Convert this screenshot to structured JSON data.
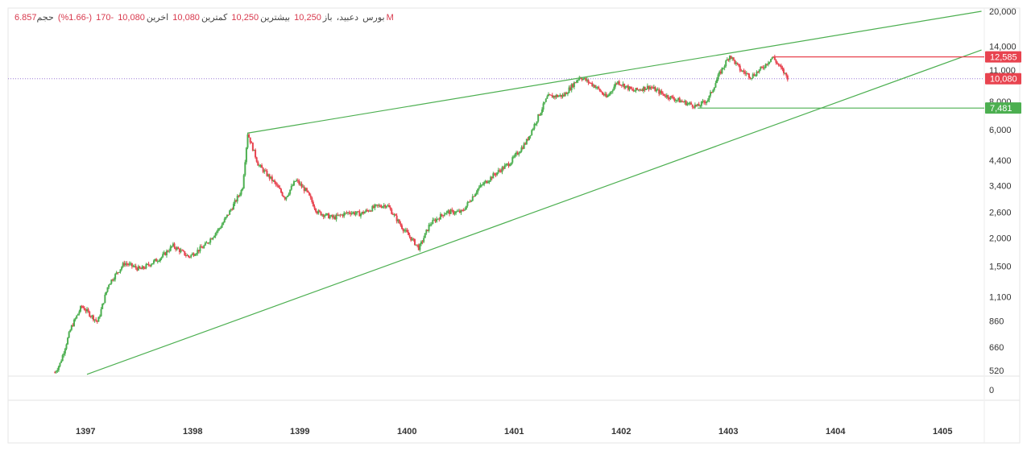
{
  "header": {
    "market": "بورس",
    "symbol": "دعبید،",
    "open_label": "باز",
    "open_value": "10,250",
    "high_label": "بیشترین",
    "high_value": "10,250",
    "low_label": "کمترین",
    "low_value": "10,080",
    "close_label": "اخرین",
    "close_value": "10,080",
    "change_value": "-170",
    "change_pct": "(-1.66%)",
    "volume_label": "حجم",
    "volume_value": "6.857M"
  },
  "chart_data": {
    "type": "candlestick",
    "scale": "log",
    "x_ticks": [
      "1397",
      "1398",
      "1399",
      "1400",
      "1401",
      "1402",
      "1403",
      "1404",
      "1405"
    ],
    "y_ticks": [
      "20,000",
      "14,000",
      "11,000",
      "8,000",
      "6,000",
      "4,400",
      "3,400",
      "2,600",
      "2,000",
      "1,500",
      "1,100",
      "860",
      "660",
      "520",
      "0"
    ],
    "y_tick_values": [
      20000,
      14000,
      11000,
      8000,
      6000,
      4400,
      3400,
      2600,
      2000,
      1500,
      1100,
      860,
      660,
      520
    ],
    "price_tags": [
      {
        "label": "12,585",
        "value": 12585,
        "color": "#e8434f"
      },
      {
        "label": "10,080",
        "value": 10080,
        "color": "#e8434f"
      },
      {
        "label": "7,481",
        "value": 7481,
        "color": "#4caf50"
      }
    ],
    "last_price": 10080,
    "price_path": [
      [
        1396.7,
        510
      ],
      [
        1396.75,
        560
      ],
      [
        1396.85,
        800
      ],
      [
        1396.95,
        1000
      ],
      [
        1397.1,
        850
      ],
      [
        1397.2,
        1250
      ],
      [
        1397.35,
        1550
      ],
      [
        1397.5,
        1450
      ],
      [
        1397.7,
        1650
      ],
      [
        1397.8,
        1850
      ],
      [
        1397.95,
        1650
      ],
      [
        1398.1,
        1850
      ],
      [
        1398.25,
        2250
      ],
      [
        1398.35,
        2700
      ],
      [
        1398.45,
        3300
      ],
      [
        1398.5,
        5800
      ],
      [
        1398.6,
        4200
      ],
      [
        1398.75,
        3500
      ],
      [
        1398.85,
        3000
      ],
      [
        1398.95,
        3600
      ],
      [
        1399.05,
        3200
      ],
      [
        1399.15,
        2600
      ],
      [
        1399.3,
        2450
      ],
      [
        1399.45,
        2600
      ],
      [
        1399.55,
        2550
      ],
      [
        1399.7,
        2750
      ],
      [
        1399.8,
        2800
      ],
      [
        1399.95,
        2200
      ],
      [
        1400.1,
        1800
      ],
      [
        1400.2,
        2300
      ],
      [
        1400.35,
        2600
      ],
      [
        1400.5,
        2600
      ],
      [
        1400.65,
        3300
      ],
      [
        1400.8,
        3800
      ],
      [
        1400.95,
        4300
      ],
      [
        1401.1,
        5300
      ],
      [
        1401.3,
        8400
      ],
      [
        1401.45,
        8500
      ],
      [
        1401.6,
        10300
      ],
      [
        1401.75,
        9300
      ],
      [
        1401.85,
        8300
      ],
      [
        1401.95,
        9800
      ],
      [
        1402.1,
        8900
      ],
      [
        1402.25,
        9300
      ],
      [
        1402.4,
        8500
      ],
      [
        1402.55,
        8000
      ],
      [
        1402.7,
        7600
      ],
      [
        1402.8,
        8200
      ],
      [
        1402.9,
        10500
      ],
      [
        1403.0,
        12800
      ],
      [
        1403.1,
        11000
      ],
      [
        1403.2,
        10300
      ],
      [
        1403.3,
        11200
      ],
      [
        1403.4,
        12585
      ],
      [
        1403.5,
        10800
      ],
      [
        1403.55,
        10080
      ]
    ],
    "trendlines": [
      {
        "name": "upper",
        "x1": 1398.5,
        "y1": 5800,
        "x2": 1405.35,
        "y2": 20000
      },
      {
        "name": "lower",
        "x1": 1397.0,
        "y1": 500,
        "x2": 1405.35,
        "y2": 13500
      }
    ],
    "levels": [
      {
        "name": "resistance",
        "x_start": 1403.4,
        "value": 12585,
        "color": "#e8434f"
      },
      {
        "name": "support",
        "x_start": 1402.7,
        "value": 7481,
        "color": "#4caf50"
      }
    ],
    "colors": {
      "up": "#4caf50",
      "down": "#e8434f",
      "trend": "#4caf50"
    }
  }
}
